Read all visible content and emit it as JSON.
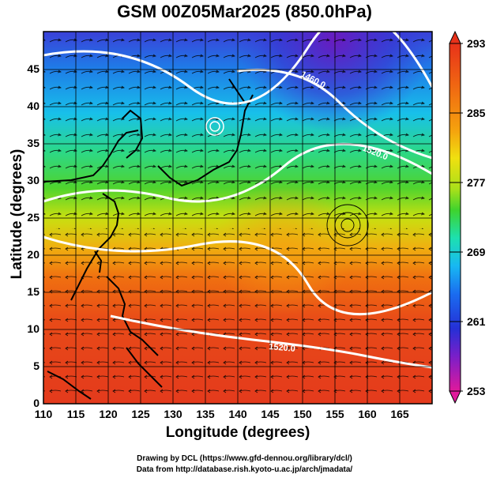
{
  "title": "GSM 00Z05Mar2025 (850.0hPa)",
  "x_axis": {
    "label": "Longitude (degrees)",
    "ticks": [
      "110",
      "115",
      "120",
      "125",
      "130",
      "135",
      "140",
      "145",
      "150",
      "155",
      "160",
      "165"
    ],
    "range": [
      110,
      170
    ]
  },
  "y_axis": {
    "label": "Latitude  (degrees)",
    "ticks": [
      "0",
      "5",
      "10",
      "15",
      "20",
      "25",
      "30",
      "35",
      "40",
      "45"
    ],
    "range": [
      0,
      50
    ]
  },
  "colorbar": {
    "ticks": [
      "293",
      "285",
      "277",
      "269",
      "261",
      "253"
    ],
    "range": [
      253,
      293
    ],
    "colors": [
      "#e0199b",
      "#7a1fc9",
      "#2530d6",
      "#1a6df0",
      "#18b8f2",
      "#1de0b0",
      "#3ed32e",
      "#a8e01a",
      "#f0e010",
      "#f5a20e",
      "#f06612",
      "#e8321a"
    ]
  },
  "contour_labels": [
    "1460.0",
    "1520.0",
    "1520.0"
  ],
  "credits": {
    "line1": "Drawing by DCL (https://www.gfd-dennou.org/library/dcl/)",
    "line2": "Data from http://database.rish.kyoto-u.ac.jp/arch/jmadata/"
  }
}
